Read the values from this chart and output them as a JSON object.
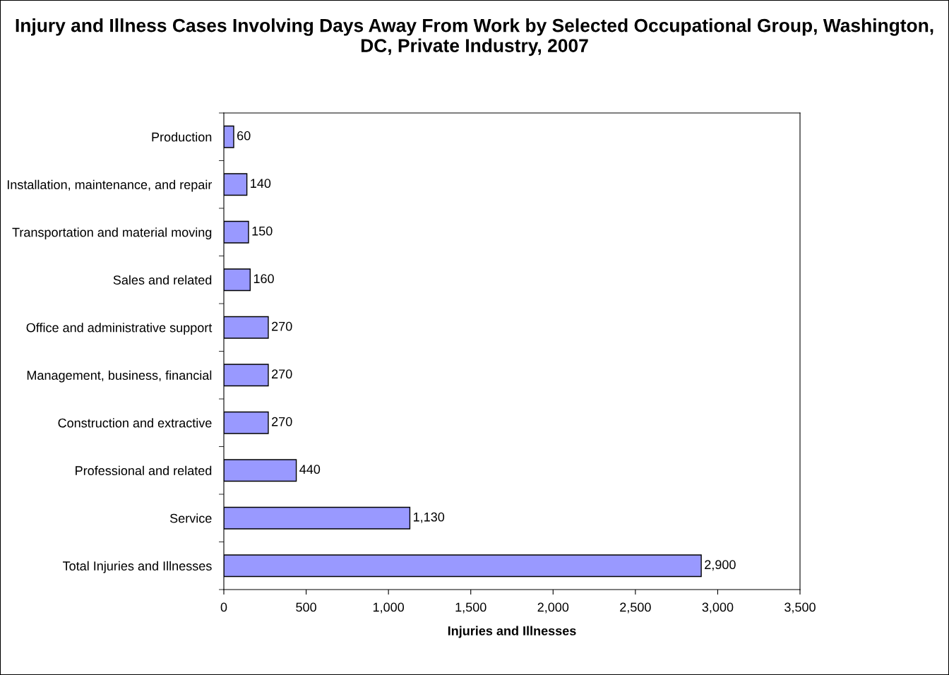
{
  "chart_data": {
    "type": "bar",
    "orientation": "horizontal",
    "title": "Injury and Illness Cases Involving Days Away From Work by Selected Occupational Group, Washington, DC, Private Industry, 2007",
    "xlabel": "Injuries and Illnesses",
    "categories": [
      "Production",
      "Installation, maintenance, and repair",
      "Transportation and material moving",
      "Sales and related",
      "Office and administrative support",
      "Management, business, financial",
      "Construction and extractive",
      "Professional and related",
      "Service",
      "Total Injuries and Illnesses"
    ],
    "values": [
      60,
      140,
      150,
      160,
      270,
      270,
      270,
      440,
      1130,
      2900
    ],
    "value_labels": [
      "60",
      "140",
      "150",
      "160",
      "270",
      "270",
      "270",
      "440",
      "1,130",
      "2,900"
    ],
    "color": "#9999ff",
    "xlim": [
      0,
      3500
    ],
    "xticks": [
      0,
      500,
      {
        "value": 1000,
        "label": "1,000"
      },
      {
        "value": 1500,
        "label": "1,500"
      },
      {
        "value": 2000,
        "label": "2,000"
      },
      {
        "value": 2500,
        "label": "2,500"
      },
      {
        "value": 3000,
        "label": "3,000"
      },
      {
        "value": 3500,
        "label": "3,500"
      }
    ],
    "grid": false
  }
}
